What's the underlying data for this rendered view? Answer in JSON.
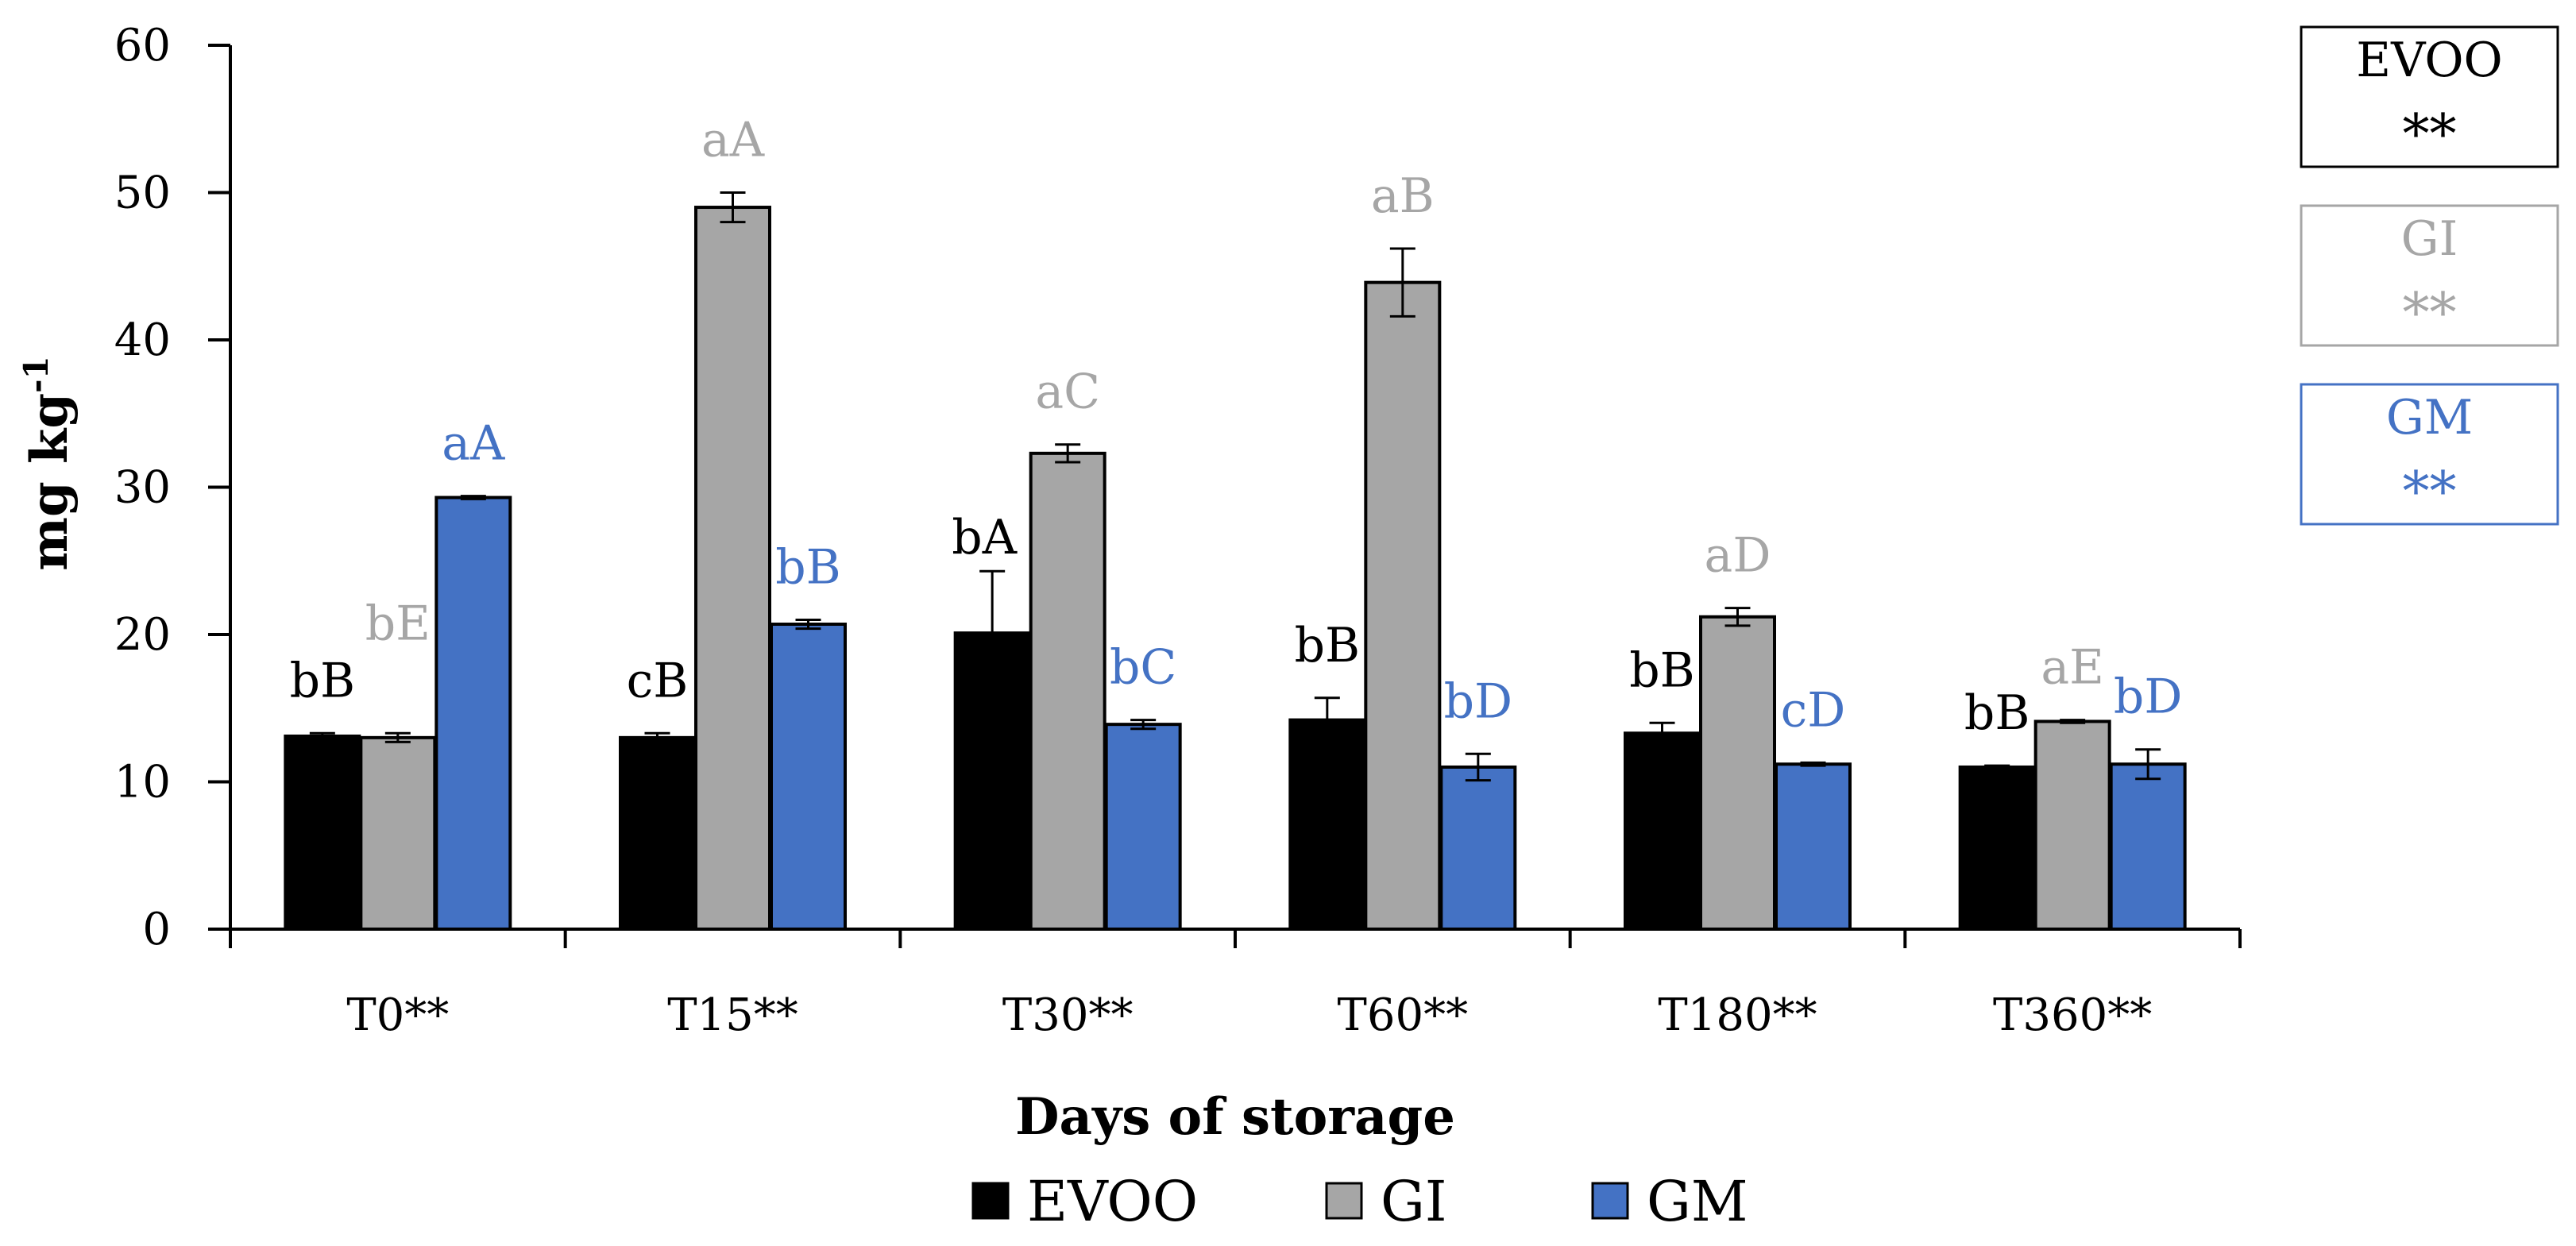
{
  "chart_data": {
    "type": "bar",
    "title": "",
    "xlabel": "Days of storage",
    "ylabel_main": "mg kg",
    "ylabel_sup": "-1",
    "ylim": [
      0,
      60
    ],
    "yticks": [
      0,
      10,
      20,
      30,
      40,
      50,
      60
    ],
    "categories": [
      "T0**",
      "T15**",
      "T30**",
      "T60**",
      "T180**",
      "T360**"
    ],
    "series": [
      {
        "name": "EVOO",
        "color": "#000000",
        "label_color": "#000000",
        "values": [
          13.1,
          13.0,
          20.1,
          14.2,
          13.3,
          11.0
        ],
        "errors": [
          0.2,
          0.3,
          4.2,
          1.5,
          0.7,
          0.1
        ],
        "letters": [
          "bB",
          "cB",
          "bA",
          "bB",
          "bB",
          "bB"
        ]
      },
      {
        "name": "GI",
        "color": "#a6a6a6",
        "label_color": "#a6a6a6",
        "values": [
          13.0,
          49.0,
          32.3,
          43.9,
          21.2,
          14.1
        ],
        "errors": [
          0.3,
          1.0,
          0.6,
          2.3,
          0.6,
          0.1
        ],
        "letters": [
          "bE",
          "aA",
          "aC",
          "aB",
          "aD",
          "aE"
        ]
      },
      {
        "name": "GM",
        "color": "#4472c4",
        "label_color": "#4472c4",
        "values": [
          29.3,
          20.7,
          13.9,
          11.0,
          11.2,
          11.2
        ],
        "errors": [
          0.1,
          0.3,
          0.3,
          0.9,
          0.1,
          1.0
        ],
        "letters": [
          "aA",
          "bB",
          "bC",
          "bD",
          "cD",
          "bD"
        ]
      }
    ],
    "side_boxes": [
      {
        "label": "EVOO",
        "stars": "**",
        "color": "#000000"
      },
      {
        "label": "GI",
        "stars": "**",
        "color": "#a6a6a6"
      },
      {
        "label": "GM",
        "stars": "**",
        "color": "#4472c4"
      }
    ],
    "legend": [
      "EVOO",
      "GI",
      "GM"
    ]
  }
}
